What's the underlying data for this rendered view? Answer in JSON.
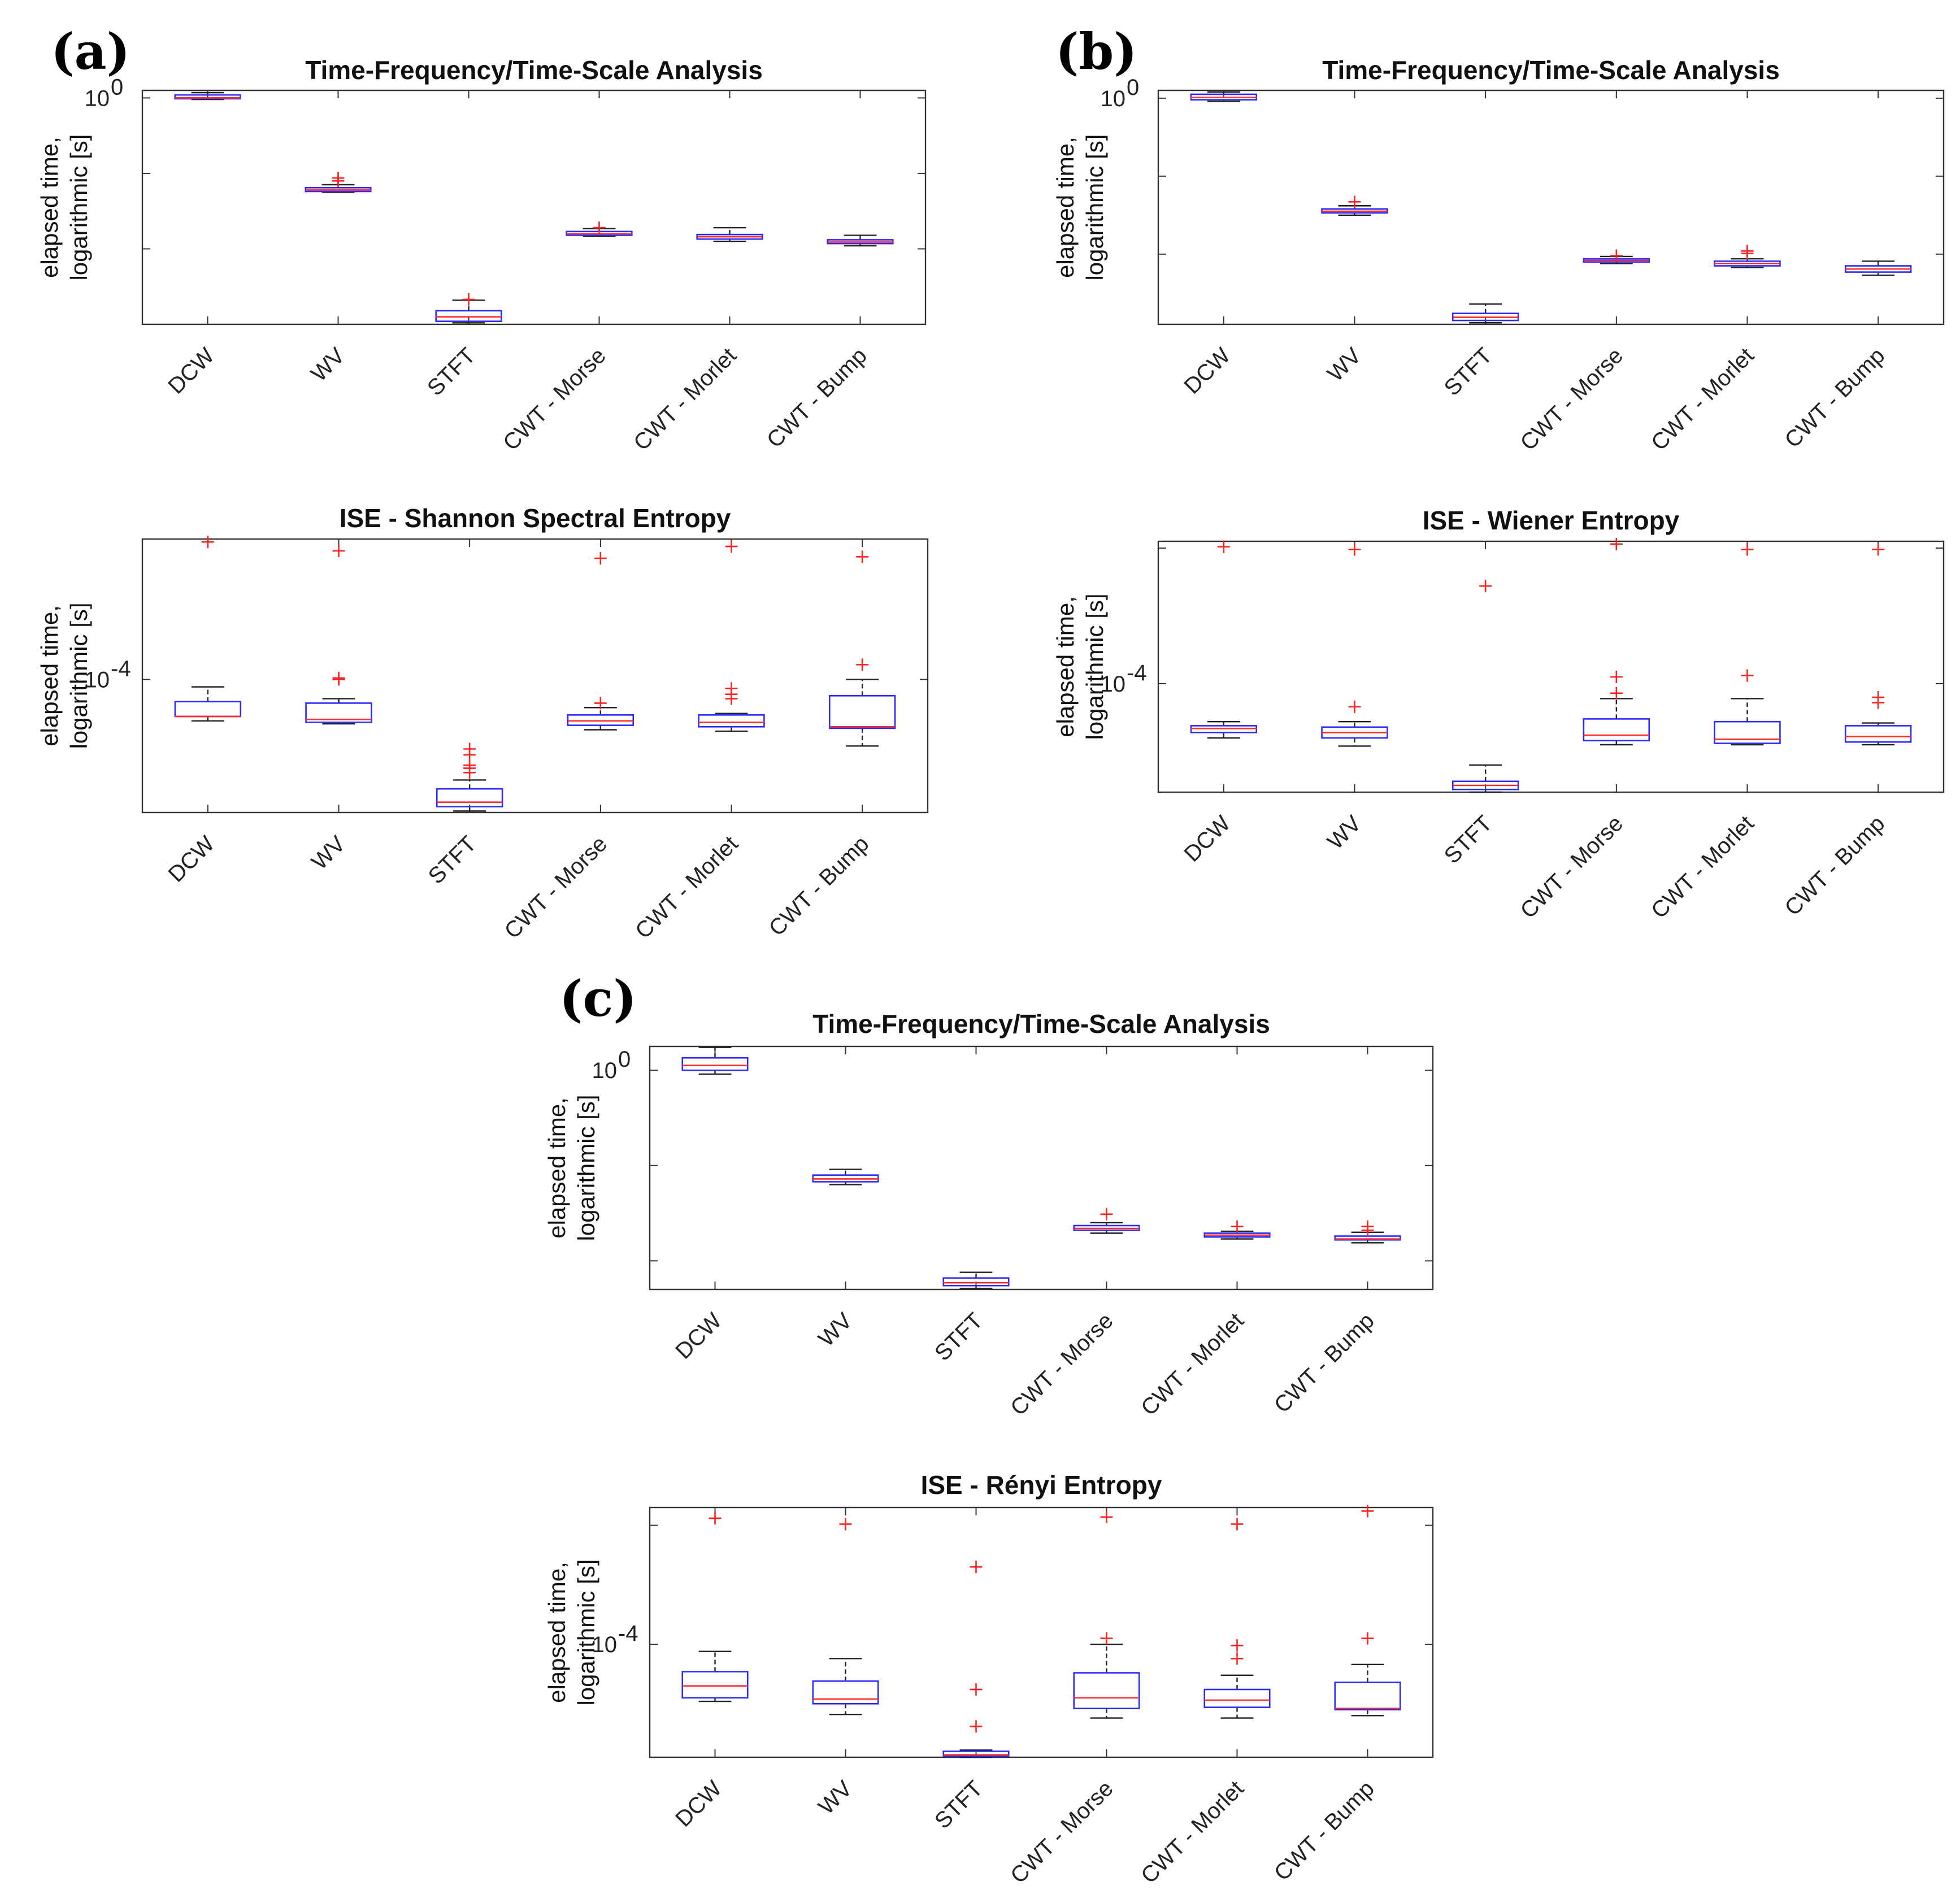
{
  "figure": {
    "panels": [
      {
        "label": "(a)"
      },
      {
        "label": "(b)"
      },
      {
        "label": "(c)"
      }
    ]
  },
  "chart_data": [
    {
      "panel": "(a)",
      "type": "box",
      "title": "Time-Frequency/Time-Scale Analysis",
      "ylabel_lines": [
        "elapsed time,",
        "logarithmic [s]"
      ],
      "yscale": "log",
      "ytick_labels": [
        {
          "base": "10",
          "exp": "0",
          "value": 1
        }
      ],
      "ylim_log10": [
        -3,
        0.1
      ],
      "categories": [
        "DCW",
        "WV",
        "STFT",
        "CWT - Morse",
        "CWT - Morlet",
        "CWT - Bump"
      ],
      "boxes": [
        {
          "whislo": -0.02,
          "q1": -0.01,
          "med": 0.0,
          "q3": 0.04,
          "whishi": 0.07,
          "fliers": []
        },
        {
          "whislo": -1.25,
          "q1": -1.24,
          "med": -1.22,
          "q3": -1.19,
          "whishi": -1.15,
          "fliers": [
            -1.1,
            -1.06
          ]
        },
        {
          "whislo": -2.98,
          "q1": -2.96,
          "med": -2.9,
          "q3": -2.82,
          "whishi": -2.68,
          "fliers": [
            -2.67
          ]
        },
        {
          "whislo": -1.83,
          "q1": -1.82,
          "med": -1.8,
          "q3": -1.77,
          "whishi": -1.73,
          "fliers": [
            -1.72
          ]
        },
        {
          "whislo": -1.9,
          "q1": -1.87,
          "med": -1.84,
          "q3": -1.81,
          "whishi": -1.72,
          "fliers": []
        },
        {
          "whislo": -1.96,
          "q1": -1.93,
          "med": -1.91,
          "q3": -1.88,
          "whishi": -1.82,
          "fliers": []
        }
      ]
    },
    {
      "panel": "(a)",
      "type": "box",
      "title": "ISE - Shannon Spectral Entropy",
      "ylabel_lines": [
        "elapsed time,",
        "logarithmic [s]"
      ],
      "yscale": "log",
      "ytick_labels": [
        {
          "base": "10",
          "exp": "-4",
          "value": 0.0001
        }
      ],
      "ylim_log10": [
        -4.9,
        -3.05
      ],
      "categories": [
        "DCW",
        "WV",
        "STFT",
        "CWT - Morse",
        "CWT - Morlet",
        "CWT - Bump"
      ],
      "boxes": [
        {
          "whislo": -4.28,
          "q1": -4.25,
          "med": -4.25,
          "q3": -4.15,
          "whishi": -4.05,
          "fliers": [
            -3.07
          ]
        },
        {
          "whislo": -4.3,
          "q1": -4.29,
          "med": -4.27,
          "q3": -4.16,
          "whishi": -4.13,
          "fliers": [
            -3.13,
            -3.99,
            -4.0
          ]
        },
        {
          "whislo": -4.89,
          "q1": -4.86,
          "med": -4.83,
          "q3": -4.74,
          "whishi": -4.68,
          "fliers": [
            -4.47,
            -4.51,
            -4.58,
            -4.6,
            -4.63
          ]
        },
        {
          "whislo": -4.34,
          "q1": -4.31,
          "med": -4.28,
          "q3": -4.24,
          "whishi": -4.19,
          "fliers": [
            -4.16,
            -3.18
          ]
        },
        {
          "whislo": -4.35,
          "q1": -4.32,
          "med": -4.29,
          "q3": -4.24,
          "whishi": -4.23,
          "fliers": [
            -4.06,
            -4.1,
            -4.13,
            -3.1
          ]
        },
        {
          "whislo": -4.45,
          "q1": -4.33,
          "med": -4.32,
          "q3": -4.11,
          "whishi": -4.0,
          "fliers": [
            -3.9,
            -3.17
          ]
        }
      ]
    },
    {
      "panel": "(b)",
      "type": "box",
      "title": "Time-Frequency/Time-Scale Analysis",
      "ylabel_lines": [
        "elapsed time,",
        "logarithmic [s]"
      ],
      "yscale": "log",
      "ytick_labels": [
        {
          "base": "10",
          "exp": "0",
          "value": 1
        }
      ],
      "ylim_log10": [
        -2.9,
        0.1
      ],
      "categories": [
        "DCW",
        "WV",
        "STFT",
        "CWT - Morse",
        "CWT - Morlet",
        "CWT - Bump"
      ],
      "boxes": [
        {
          "whislo": -0.04,
          "q1": -0.02,
          "med": 0.01,
          "q3": 0.05,
          "whishi": 0.08,
          "fliers": []
        },
        {
          "whislo": -1.5,
          "q1": -1.47,
          "med": -1.45,
          "q3": -1.42,
          "whishi": -1.38,
          "fliers": [
            -1.33
          ]
        },
        {
          "whislo": -2.88,
          "q1": -2.85,
          "med": -2.81,
          "q3": -2.76,
          "whishi": -2.64,
          "fliers": []
        },
        {
          "whislo": -2.12,
          "q1": -2.1,
          "med": -2.08,
          "q3": -2.06,
          "whishi": -2.03,
          "fliers": [
            -2.02
          ]
        },
        {
          "whislo": -2.17,
          "q1": -2.15,
          "med": -2.12,
          "q3": -2.09,
          "whishi": -2.06,
          "fliers": [
            -1.96,
            -1.99
          ]
        },
        {
          "whislo": -2.27,
          "q1": -2.23,
          "med": -2.19,
          "q3": -2.15,
          "whishi": -2.09,
          "fliers": []
        }
      ]
    },
    {
      "panel": "(b)",
      "type": "box",
      "title": "ISE - Wiener Entropy",
      "ylabel_lines": [
        "elapsed time,",
        "logarithmic [s]"
      ],
      "yscale": "log",
      "ytick_labels": [
        {
          "base": "10",
          "exp": "-4",
          "value": 0.0001
        }
      ],
      "ylim_log10": [
        -4.8,
        -2.95
      ],
      "categories": [
        "DCW",
        "WV",
        "STFT",
        "CWT - Morse",
        "CWT - Morlet",
        "CWT - Bump"
      ],
      "boxes": [
        {
          "whislo": -4.4,
          "q1": -4.36,
          "med": -4.33,
          "q3": -4.31,
          "whishi": -4.28,
          "fliers": [
            -2.99
          ]
        },
        {
          "whislo": -4.46,
          "q1": -4.4,
          "med": -4.36,
          "q3": -4.32,
          "whishi": -4.28,
          "fliers": [
            -3.01,
            -4.17
          ]
        },
        {
          "whislo": -4.8,
          "q1": -4.78,
          "med": -4.75,
          "q3": -4.72,
          "whishi": -4.6,
          "fliers": [
            -3.28
          ]
        },
        {
          "whislo": -4.45,
          "q1": -4.42,
          "med": -4.38,
          "q3": -4.26,
          "whishi": -4.11,
          "fliers": [
            -3.95,
            -4.07,
            -2.97
          ]
        },
        {
          "whislo": -4.45,
          "q1": -4.44,
          "med": -4.41,
          "q3": -4.28,
          "whishi": -4.11,
          "fliers": [
            -3.94,
            -3.01
          ]
        },
        {
          "whislo": -4.45,
          "q1": -4.43,
          "med": -4.39,
          "q3": -4.31,
          "whishi": -4.29,
          "fliers": [
            -4.1,
            -4.14,
            -3.01
          ]
        }
      ]
    },
    {
      "panel": "(c)",
      "type": "box",
      "title": "Time-Frequency/Time-Scale Analysis",
      "ylabel_lines": [
        "elapsed time,",
        "logarithmic [s]"
      ],
      "yscale": "log",
      "ytick_labels": [
        {
          "base": "10",
          "exp": "0",
          "value": 1
        }
      ],
      "ylim_log10": [
        -2.3,
        0.25
      ],
      "categories": [
        "DCW",
        "WV",
        "STFT",
        "CWT - Morse",
        "CWT - Morlet",
        "CWT - Bump"
      ],
      "boxes": [
        {
          "whislo": -0.04,
          "q1": 0.0,
          "med": 0.05,
          "q3": 0.13,
          "whishi": 0.24,
          "fliers": []
        },
        {
          "whislo": -1.2,
          "q1": -1.17,
          "med": -1.14,
          "q3": -1.1,
          "whishi": -1.04,
          "fliers": []
        },
        {
          "whislo": -2.29,
          "q1": -2.26,
          "med": -2.23,
          "q3": -2.18,
          "whishi": -2.12,
          "fliers": []
        },
        {
          "whislo": -1.71,
          "q1": -1.68,
          "med": -1.66,
          "q3": -1.63,
          "whishi": -1.6,
          "fliers": [
            -1.51
          ]
        },
        {
          "whislo": -1.77,
          "q1": -1.75,
          "med": -1.73,
          "q3": -1.71,
          "whishi": -1.69,
          "fliers": [
            -1.64
          ]
        },
        {
          "whislo": -1.81,
          "q1": -1.78,
          "med": -1.77,
          "q3": -1.74,
          "whishi": -1.7,
          "fliers": [
            -1.64,
            -1.68
          ]
        }
      ]
    },
    {
      "panel": "(c)",
      "type": "box",
      "title": "ISE - Rényi Entropy",
      "ylabel_lines": [
        "elapsed time,",
        "logarithmic [s]"
      ],
      "yscale": "log",
      "ytick_labels": [
        {
          "base": "10",
          "exp": "-4",
          "value": 0.0001
        }
      ],
      "ylim_log10": [
        -4.95,
        -2.85
      ],
      "categories": [
        "DCW",
        "WV",
        "STFT",
        "CWT - Morse",
        "CWT - Morlet",
        "CWT - Bump"
      ],
      "boxes": [
        {
          "whislo": -4.48,
          "q1": -4.45,
          "med": -4.35,
          "q3": -4.23,
          "whishi": -4.06,
          "fliers": [
            -2.94
          ]
        },
        {
          "whislo": -4.59,
          "q1": -4.5,
          "med": -4.46,
          "q3": -4.31,
          "whishi": -4.12,
          "fliers": [
            -2.99
          ]
        },
        {
          "whislo": -4.95,
          "q1": -4.94,
          "med": -4.93,
          "q3": -4.9,
          "whishi": -4.89,
          "fliers": [
            -3.35,
            -4.38,
            -4.69
          ]
        },
        {
          "whislo": -4.62,
          "q1": -4.54,
          "med": -4.45,
          "q3": -4.24,
          "whishi": -4.0,
          "fliers": [
            -3.95,
            -2.93
          ]
        },
        {
          "whislo": -4.62,
          "q1": -4.53,
          "med": -4.47,
          "q3": -4.38,
          "whishi": -4.26,
          "fliers": [
            -4.01,
            -4.12,
            -2.99
          ]
        },
        {
          "whislo": -4.6,
          "q1": -4.55,
          "med": -4.54,
          "q3": -4.32,
          "whishi": -4.17,
          "fliers": [
            -3.95,
            -2.88
          ]
        }
      ]
    }
  ]
}
